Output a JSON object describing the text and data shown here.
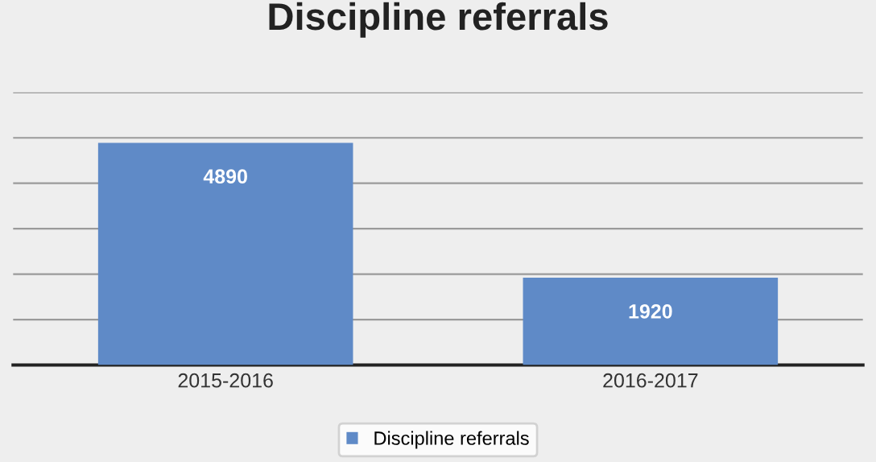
{
  "chart_data": {
    "type": "bar",
    "title": "Discipline referrals",
    "categories": [
      "2015-2016",
      "2016-2017"
    ],
    "series": [
      {
        "name": "Discipline referrals",
        "color": "#5f8ac7",
        "values": [
          4890,
          1920
        ]
      }
    ],
    "ylim": [
      0,
      6000
    ],
    "yticks": [
      {
        "value": 0,
        "label": null
      },
      {
        "value": 1000,
        "label": null
      },
      {
        "value": 2000,
        "label": null
      },
      {
        "value": 3000,
        "label": null
      },
      {
        "value": 4000,
        "label": null
      },
      {
        "value": 5000,
        "label": null
      },
      {
        "value": 6000,
        "label": null
      }
    ],
    "grid": "y",
    "legend": "bottom",
    "data_labels": true,
    "tick_labels": "x"
  }
}
